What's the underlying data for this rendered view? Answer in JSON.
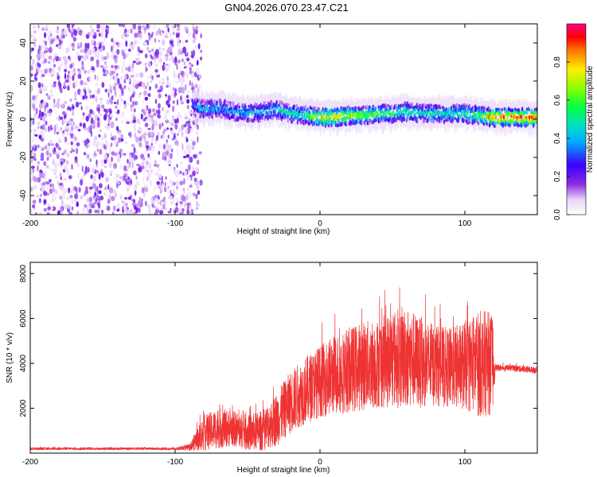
{
  "title": "GN04.2026.070.23.47.C21",
  "chart_data": [
    {
      "type": "heatmap",
      "panel": "spectrogram",
      "xlabel": "Height of straight line (km)",
      "ylabel": "Frequency (Hz)",
      "xlim": [
        -200,
        150
      ],
      "ylim": [
        -50,
        50
      ],
      "xticks": [
        -200,
        -100,
        0,
        100
      ],
      "xtick_labels": [
        "-200",
        "-100",
        "0",
        "100"
      ],
      "yticks": [
        -40,
        -20,
        0,
        20,
        40
      ],
      "ytick_labels": [
        "-40",
        "-20",
        "0",
        "20",
        "40"
      ],
      "noise_region_x": [
        -200,
        -82
      ],
      "signal_ridge": {
        "x": [
          -88,
          -80,
          -70,
          -60,
          -50,
          -40,
          -30,
          -20,
          -10,
          0,
          10,
          20,
          30,
          40,
          50,
          60,
          70,
          80,
          90,
          100,
          110,
          120,
          130,
          140,
          150
        ],
        "freq_hz": [
          7,
          5,
          6,
          4,
          3,
          4,
          5,
          3,
          2,
          1,
          1,
          2,
          2,
          3,
          3,
          4,
          3,
          3,
          3,
          3,
          2,
          1,
          1,
          1,
          1
        ],
        "peak_amplitude": [
          0.35,
          0.4,
          0.4,
          0.4,
          0.45,
          0.45,
          0.45,
          0.5,
          0.5,
          0.75,
          0.8,
          0.7,
          0.65,
          0.6,
          0.55,
          0.55,
          0.5,
          0.5,
          0.5,
          0.55,
          0.6,
          0.9,
          0.9,
          0.9,
          0.9
        ]
      },
      "colorbar": {
        "label": "Normalized spectral amplitude",
        "range": [
          0,
          1
        ],
        "ticks": [
          0.0,
          0.2,
          0.4,
          0.6,
          0.8
        ],
        "tick_labels": [
          "0.0",
          "0.2",
          "0.4",
          "0.6",
          "0.8"
        ]
      }
    },
    {
      "type": "line",
      "panel": "snr",
      "xlabel": "Height of straight line (km)",
      "ylabel": "SNR (10 * v/v)",
      "xlim": [
        -200,
        150
      ],
      "ylim": [
        0,
        8500
      ],
      "xticks": [
        -200,
        -100,
        0,
        100
      ],
      "xtick_labels": [
        "-200",
        "-100",
        "0",
        "100"
      ],
      "yticks": [
        2000,
        4000,
        6000,
        8000
      ],
      "ytick_labels": [
        "2000",
        "4000",
        "6000",
        "8000"
      ],
      "series": [
        {
          "name": "SNR",
          "color": "#ee3333",
          "envelope_x": [
            -200,
            -150,
            -100,
            -90,
            -85,
            -80,
            -70,
            -60,
            -50,
            -40,
            -30,
            -20,
            -10,
            0,
            10,
            20,
            30,
            40,
            50,
            60,
            70,
            80,
            90,
            100,
            110,
            119,
            121,
            130,
            140,
            150
          ],
          "envelope_mean": [
            200,
            200,
            200,
            250,
            600,
            900,
            1100,
            1100,
            900,
            1000,
            1500,
            2300,
            2800,
            3200,
            3500,
            3700,
            3900,
            4000,
            4200,
            4300,
            4000,
            3900,
            3800,
            3900,
            4000,
            4000,
            3800,
            3800,
            3750,
            3700
          ],
          "envelope_spread": [
            60,
            60,
            60,
            150,
            500,
            800,
            900,
            800,
            800,
            900,
            1200,
            1400,
            1500,
            1600,
            1800,
            1900,
            2000,
            2000,
            2200,
            2300,
            2000,
            1800,
            1800,
            2000,
            2400,
            2300,
            150,
            150,
            150,
            150
          ]
        }
      ]
    }
  ]
}
